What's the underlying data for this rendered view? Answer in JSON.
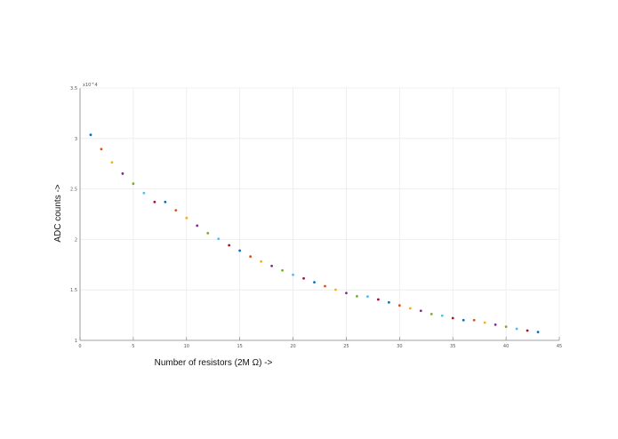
{
  "chart_data": {
    "type": "scatter",
    "title": "",
    "xlabel": "Number of resistors (2M Ω) ->",
    "ylabel": "ADC counts ->",
    "y_exponent_label": "x10^4",
    "xlim": [
      0,
      45
    ],
    "ylim": [
      1,
      3.5
    ],
    "y_scale_factor": 10000,
    "grid": true,
    "xticks": [
      "0",
      "5",
      "10",
      "15",
      "20",
      "25",
      "30",
      "35",
      "40",
      "45"
    ],
    "yticks": [
      "1",
      "1.5",
      "2",
      "2.5",
      "3",
      "3.5"
    ],
    "colors": [
      "#0072BD",
      "#D95319",
      "#EDB120",
      "#7E2F8E",
      "#77AC30",
      "#4DBEEE",
      "#A2142F"
    ],
    "x": [
      1,
      2,
      3,
      4,
      5,
      6,
      7,
      8,
      9,
      10,
      11,
      12,
      13,
      14,
      15,
      16,
      17,
      18,
      19,
      20,
      21,
      22,
      23,
      24,
      25,
      26,
      27,
      28,
      29,
      30,
      31,
      32,
      33,
      34,
      35,
      36,
      37,
      38,
      39,
      40,
      41,
      42,
      43
    ],
    "y": [
      3.036,
      2.895,
      2.763,
      2.652,
      2.552,
      2.459,
      2.371,
      2.371,
      2.288,
      2.212,
      2.136,
      2.062,
      2.006,
      1.942,
      1.889,
      1.83,
      1.781,
      1.737,
      1.693,
      1.649,
      1.614,
      1.575,
      1.537,
      1.502,
      1.469,
      1.437,
      1.434,
      1.405,
      1.376,
      1.346,
      1.317,
      1.293,
      1.261,
      1.244,
      1.22,
      1.2,
      1.2,
      1.176,
      1.155,
      1.135,
      1.114,
      1.097,
      1.082
    ]
  }
}
